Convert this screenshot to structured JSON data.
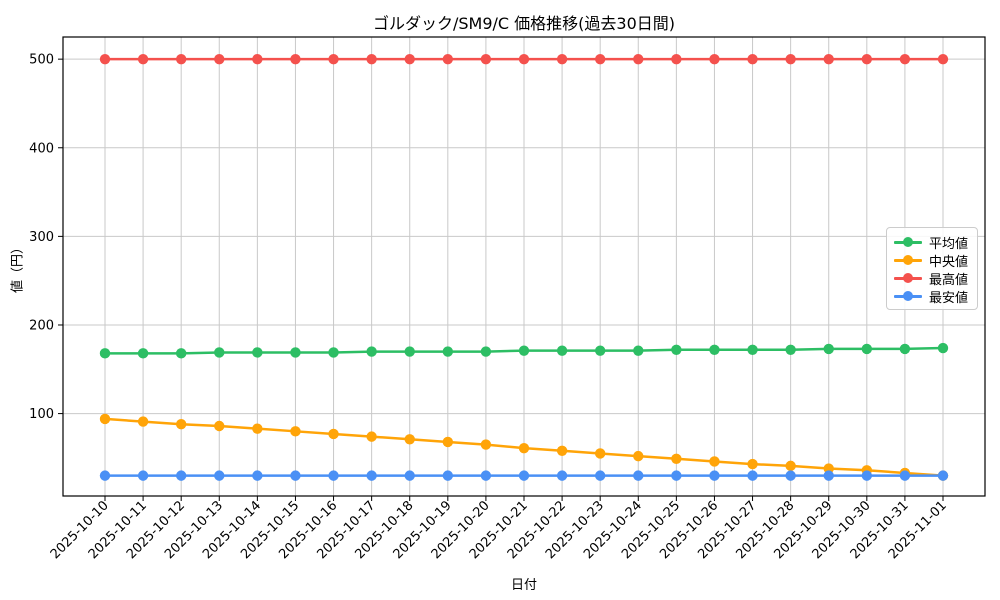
{
  "figure": {
    "background": "#ffffff",
    "grid_color": "#c9c9c9",
    "spine_color": "#000000",
    "tick_color": "#000000"
  },
  "chart_data": {
    "type": "line",
    "title": "ゴルダック/SM9/C 価格推移(過去30日間)",
    "xlabel": "日付",
    "ylabel": "値（円）",
    "grid": true,
    "legend_position": "center-right",
    "ylim": [
      7,
      525
    ],
    "yticks": [
      100,
      200,
      300,
      400,
      500
    ],
    "x": [
      "2025-10-10",
      "2025-10-11",
      "2025-10-12",
      "2025-10-13",
      "2025-10-14",
      "2025-10-15",
      "2025-10-16",
      "2025-10-17",
      "2025-10-18",
      "2025-10-19",
      "2025-10-20",
      "2025-10-21",
      "2025-10-22",
      "2025-10-23",
      "2025-10-24",
      "2025-10-25",
      "2025-10-26",
      "2025-10-27",
      "2025-10-28",
      "2025-10-29",
      "2025-10-30",
      "2025-10-31",
      "2025-11-01"
    ],
    "series": [
      {
        "key": "average",
        "name": "平均値",
        "color": "#2dbe64",
        "values": [
          168,
          168,
          168,
          169,
          169,
          169,
          169,
          170,
          170,
          170,
          170,
          171,
          171,
          171,
          171,
          172,
          172,
          172,
          172,
          173,
          173,
          173,
          174
        ]
      },
      {
        "key": "median",
        "name": "中央値",
        "color": "#ffa408",
        "values": [
          94,
          91,
          88,
          86,
          83,
          80,
          77,
          74,
          71,
          68,
          65,
          61,
          58,
          55,
          52,
          49,
          46,
          43,
          41,
          38,
          36,
          33,
          30
        ]
      },
      {
        "key": "max",
        "name": "最高値",
        "color": "#f4514d",
        "values": [
          500,
          500,
          500,
          500,
          500,
          500,
          500,
          500,
          500,
          500,
          500,
          500,
          500,
          500,
          500,
          500,
          500,
          500,
          500,
          500,
          500,
          500,
          500
        ]
      },
      {
        "key": "min",
        "name": "最安値",
        "color": "#4a90f5",
        "values": [
          30,
          30,
          30,
          30,
          30,
          30,
          30,
          30,
          30,
          30,
          30,
          30,
          30,
          30,
          30,
          30,
          30,
          30,
          30,
          30,
          30,
          30,
          30
        ]
      }
    ]
  }
}
